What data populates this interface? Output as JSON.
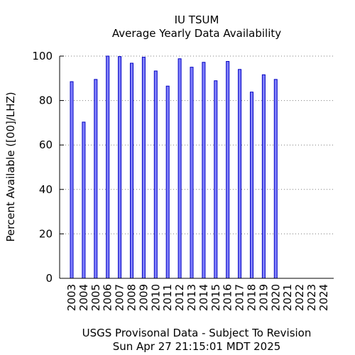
{
  "chart_data": {
    "type": "bar",
    "title": "IU TSUM",
    "subtitle": "Average Yearly Data Availability",
    "ylabel": "Percent Available ([00]/LHZ)",
    "xlabel": "",
    "footer_line1": "USGS Provisonal Data - Subject To Revision",
    "footer_line2": "Sun Apr 27 21:15:01 MDT 2025",
    "ylim": [
      0,
      100
    ],
    "yticks": [
      0,
      20,
      40,
      60,
      80,
      100
    ],
    "grid": true,
    "bar_color": "#8080ff",
    "bar_edge_color": "#0000c0",
    "categories": [
      "2003",
      "2004",
      "2005",
      "2006",
      "2007",
      "2008",
      "2009",
      "2010",
      "2011",
      "2012",
      "2013",
      "2014",
      "2015",
      "2016",
      "2017",
      "2018",
      "2019",
      "2020",
      "2021",
      "2022",
      "2023",
      "2024"
    ],
    "values": [
      88.5,
      70.3,
      89.5,
      100,
      99.8,
      96.8,
      99.5,
      93.3,
      86.5,
      98.8,
      95,
      97.2,
      88.9,
      97.6,
      94,
      83.8,
      91.6,
      89.5,
      null,
      null,
      null,
      null
    ]
  }
}
